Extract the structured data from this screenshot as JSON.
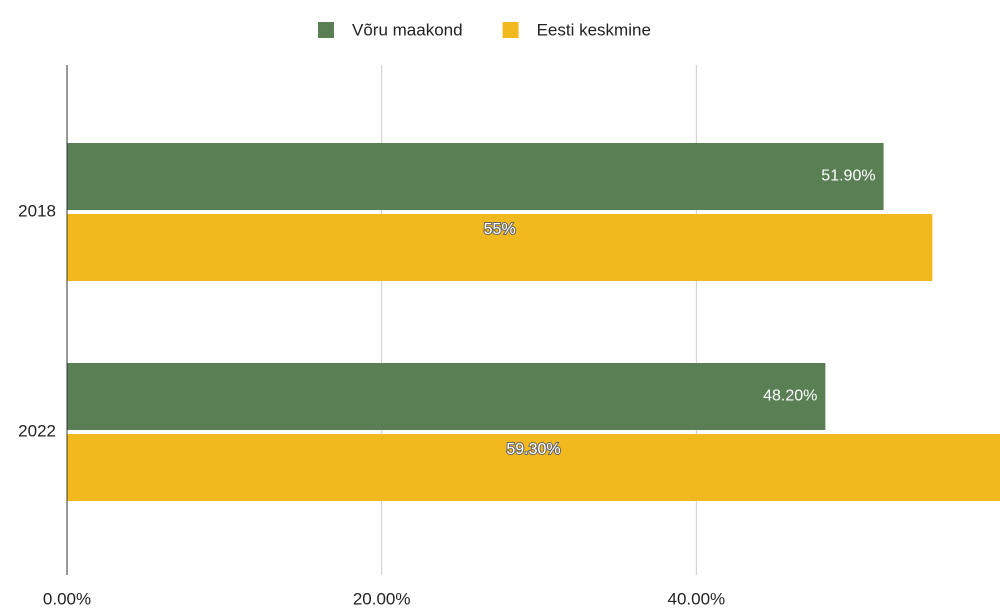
{
  "chart_data": {
    "type": "hbar",
    "categories": [
      "2018",
      "2022"
    ],
    "series": [
      {
        "name": "Võru maakond",
        "color": "#5a7f55",
        "values": [
          51.9,
          48.2
        ],
        "value_labels": [
          "51.90%",
          "48.20%"
        ]
      },
      {
        "name": "Eesti keskmine",
        "color": "#f2b91f",
        "values": [
          55,
          59.3
        ],
        "value_labels": [
          "55%",
          "59.30%"
        ]
      }
    ],
    "xlim": [
      0,
      59.3
    ],
    "xticks": [
      {
        "value": 0,
        "label": "0.00%"
      },
      {
        "value": 20,
        "label": "20.00%"
      },
      {
        "value": 40,
        "label": "40.00%"
      }
    ],
    "grid": true,
    "legend": "top"
  }
}
